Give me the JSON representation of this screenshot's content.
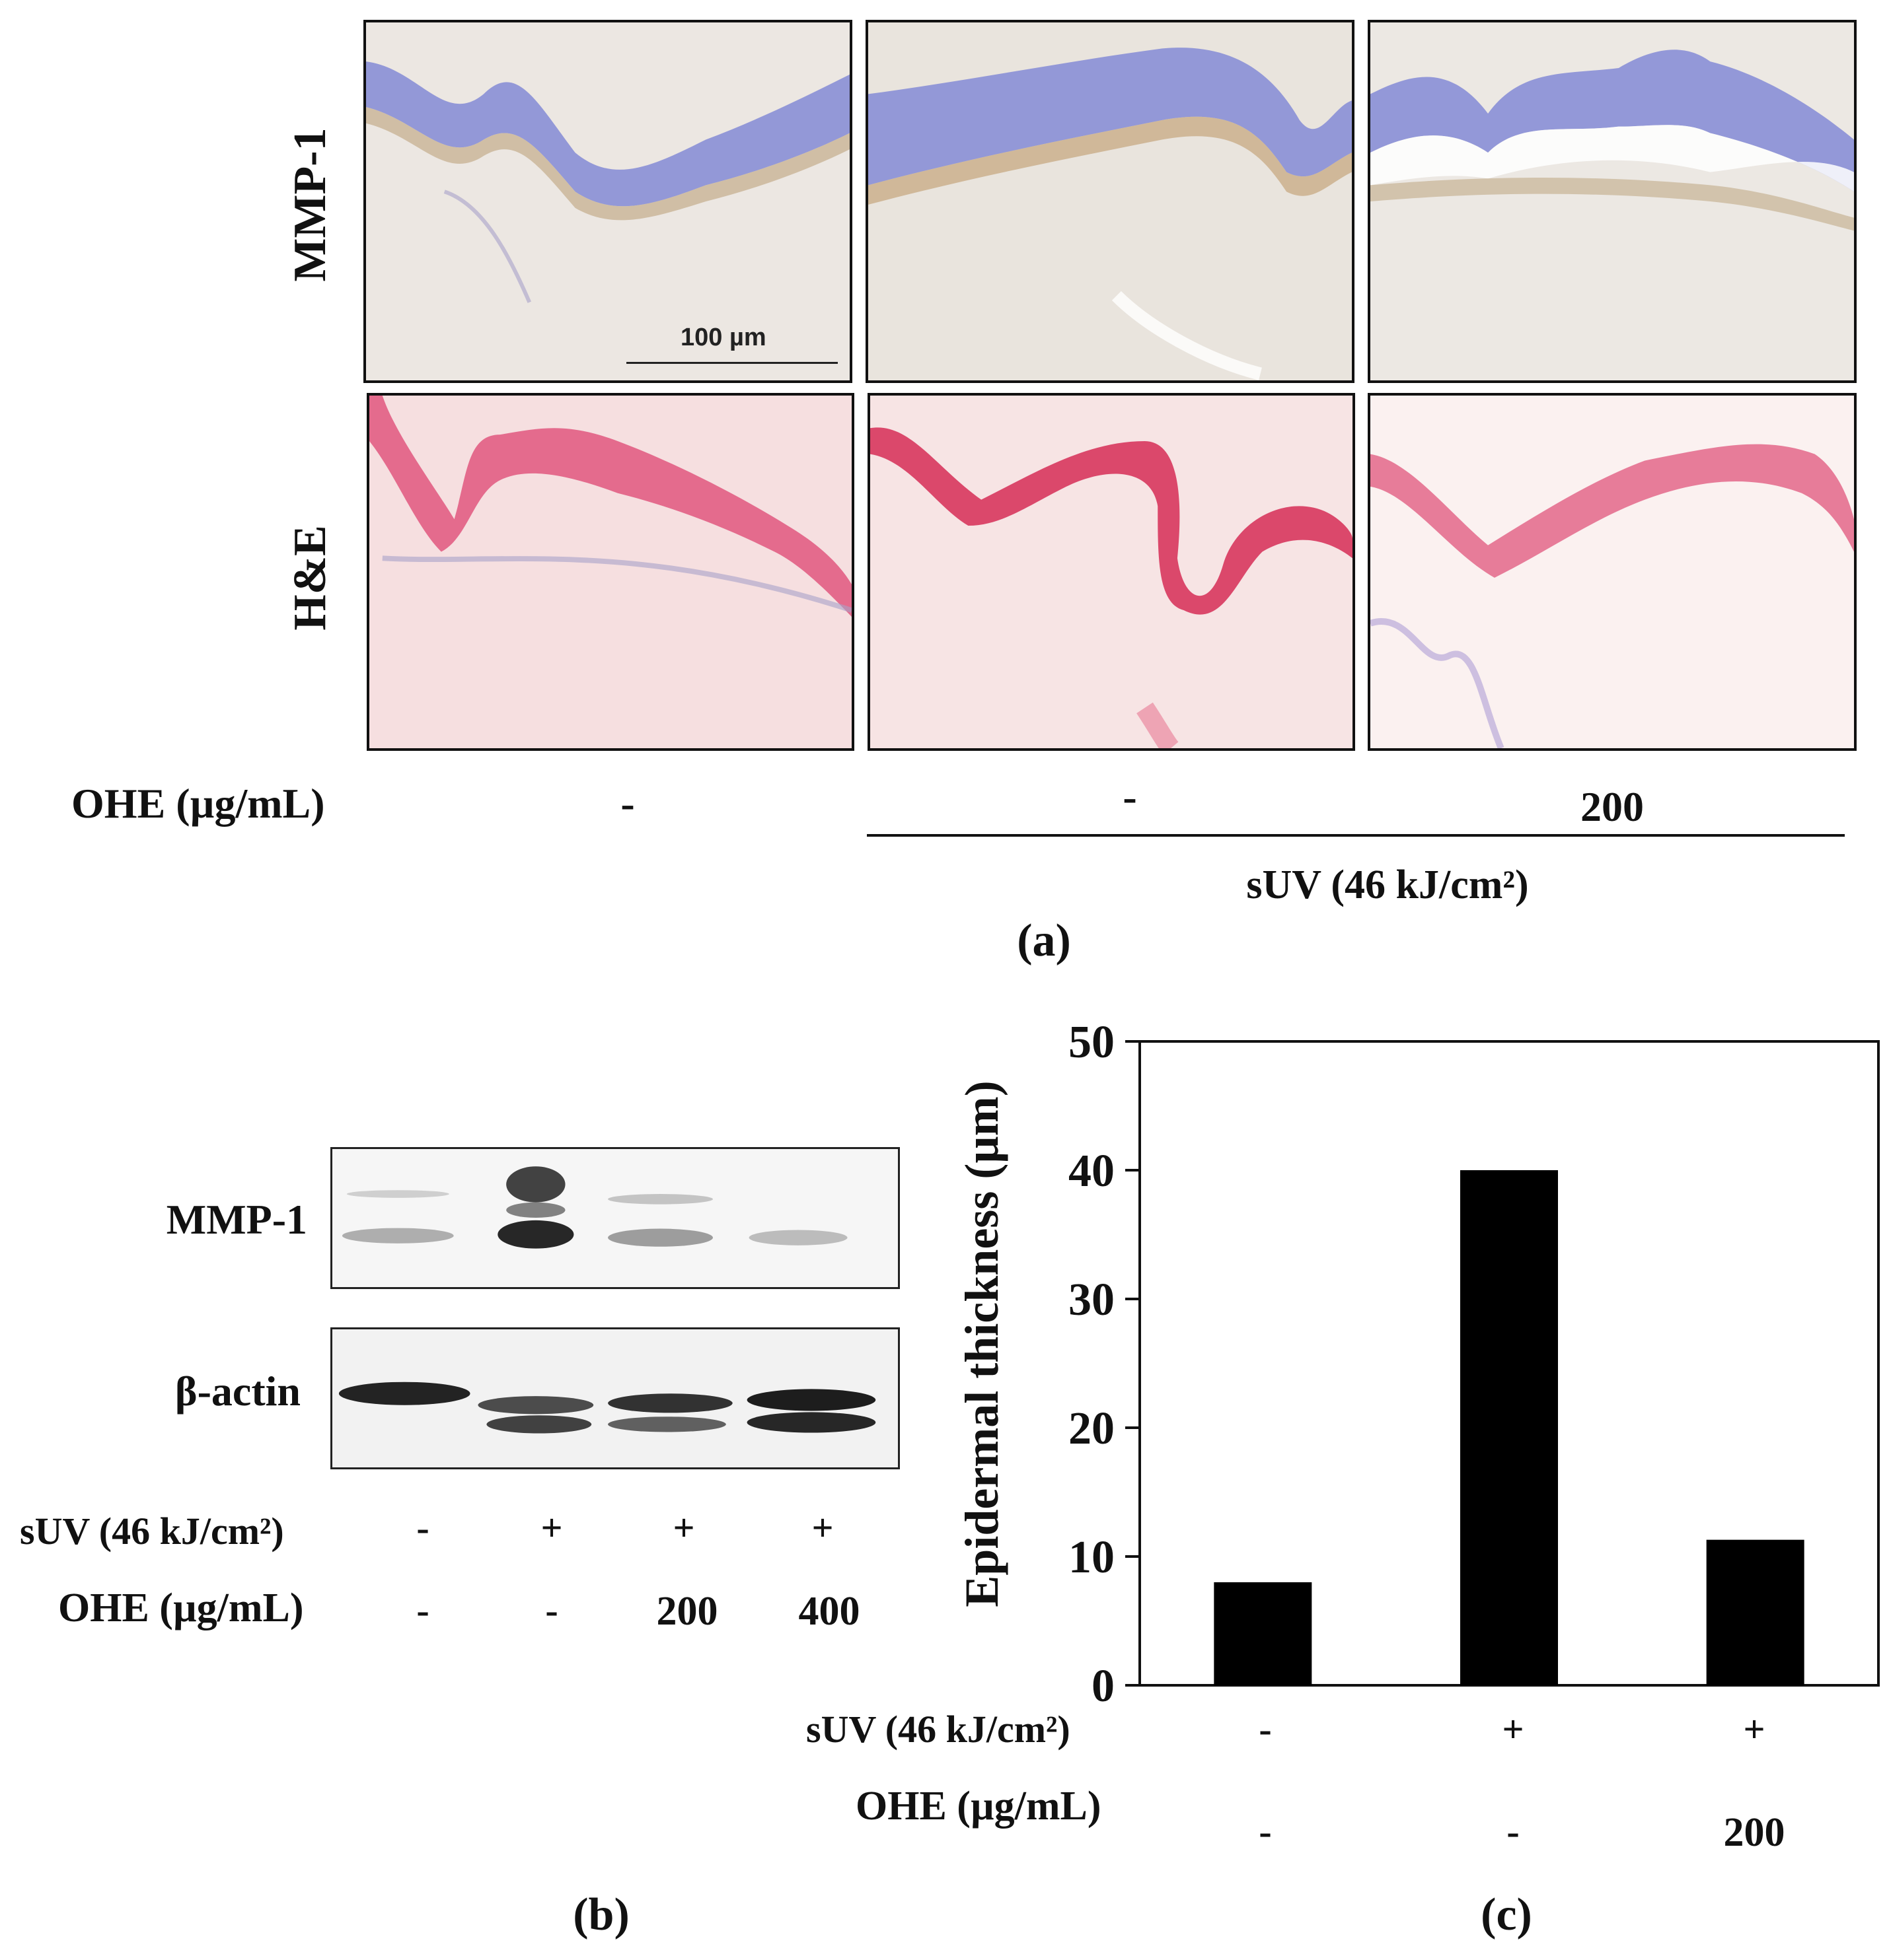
{
  "panel_a": {
    "row_labels": [
      "MMP-1",
      "H&E"
    ],
    "scale_bar_label": "100 µm",
    "ohe_label": "OHE (µg/mL)",
    "ohe_values": [
      "-",
      "-",
      "200"
    ],
    "suv_label": "sUV (46 kJ/cm²)",
    "caption": "(a)",
    "colors": {
      "ihc_epidermis": "#8a8fd6",
      "ihc_dermis": "#ece7e2",
      "he_epidermis": "#e0577e",
      "he_dermis": "#f6dfe0"
    }
  },
  "panel_b": {
    "blot_labels": [
      "MMP-1",
      "β-actin"
    ],
    "suv_label": "sUV (46 kJ/cm²)",
    "suv_values": [
      "-",
      "+",
      "+",
      "+"
    ],
    "ohe_label": "OHE (µg/mL)",
    "ohe_values": [
      "-",
      "-",
      "200",
      "400"
    ],
    "caption": "(b)"
  },
  "panel_c": {
    "caption": "(c)",
    "suv_label": "sUV (46 kJ/cm²)",
    "suv_values": [
      "-",
      "+",
      "+"
    ],
    "ohe_label": "OHE (µg/mL)",
    "ohe_values": [
      "-",
      "-",
      "200"
    ],
    "bar_color": "#000000"
  },
  "chart_data": {
    "type": "bar",
    "categories": [
      "-/-",
      "+/-",
      "+/200"
    ],
    "values": [
      8,
      40,
      11.3
    ],
    "ylabel": "Epidermal thickness (µm)",
    "ylim": [
      0,
      50
    ],
    "yticks": [
      "0",
      "10",
      "20",
      "30",
      "40",
      "50"
    ],
    "grid": false
  }
}
